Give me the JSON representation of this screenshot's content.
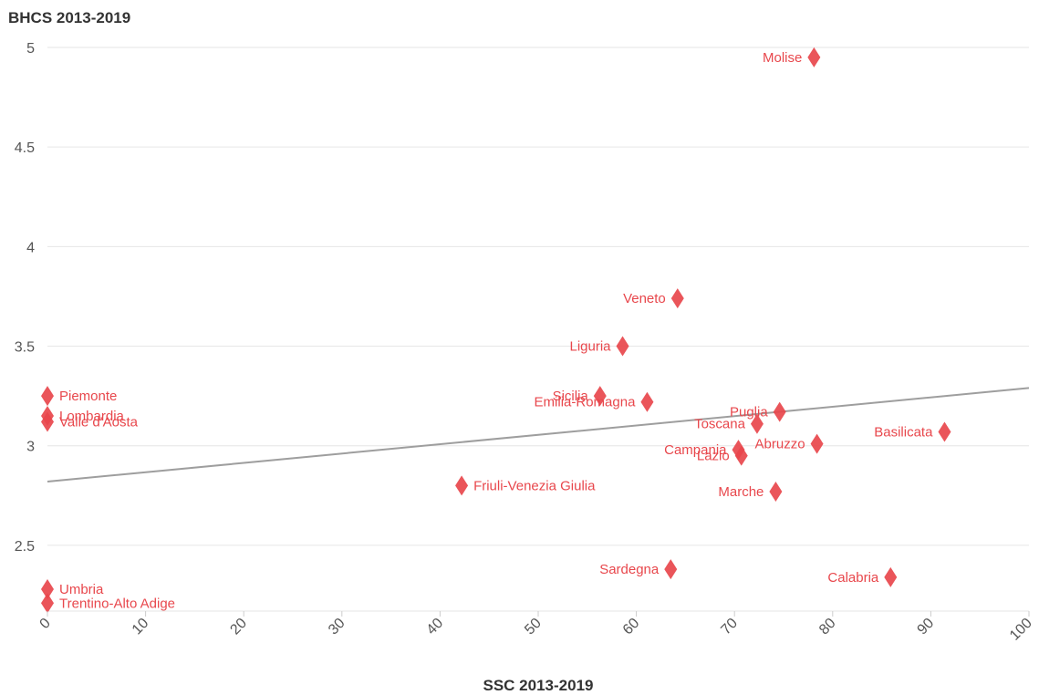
{
  "chart_data": {
    "type": "scatter",
    "ylabel": "BHCS 2013-2019",
    "xlabel": "SSC 2013-2019",
    "xlim": [
      0,
      100
    ],
    "ylim": [
      2.17,
      5.0
    ],
    "xticks": [
      0,
      10,
      20,
      30,
      40,
      50,
      60,
      70,
      80,
      90,
      100
    ],
    "xtick_labels": [
      "0",
      "10",
      "20",
      "30",
      "40",
      "50",
      "60",
      "70",
      "80",
      "90",
      "100"
    ],
    "yticks": [
      2.5,
      3,
      3.5,
      4,
      4.5,
      5
    ],
    "ytick_labels": [
      "2.5",
      "3",
      "3.5",
      "4",
      "4.5",
      "5"
    ],
    "grid": "horizontal",
    "marker_color": "#e8474c",
    "trendline_color": "#9e9e9e",
    "trendline": {
      "x": [
        0,
        100
      ],
      "y": [
        2.82,
        3.29
      ]
    },
    "points": [
      {
        "name": "Molise",
        "x": 78.1,
        "y": 4.95,
        "label_side": "left"
      },
      {
        "name": "Veneto",
        "x": 64.2,
        "y": 3.74,
        "label_side": "left"
      },
      {
        "name": "Liguria",
        "x": 58.6,
        "y": 3.5,
        "label_side": "left"
      },
      {
        "name": "Emilia-Romagna",
        "x": 61.1,
        "y": 3.22,
        "label_side": "left"
      },
      {
        "name": "Sicilia",
        "x": 56.3,
        "y": 3.25,
        "label_side": "left"
      },
      {
        "name": "Piemonte",
        "x": 0,
        "y": 3.25,
        "label_side": "right"
      },
      {
        "name": "Lombardia",
        "x": 0,
        "y": 3.15,
        "label_side": "right"
      },
      {
        "name": "Valle d'Aosta",
        "x": 0,
        "y": 3.12,
        "label_side": "right"
      },
      {
        "name": "Puglia",
        "x": 74.6,
        "y": 3.17,
        "label_side": "left"
      },
      {
        "name": "Toscana",
        "x": 72.3,
        "y": 3.11,
        "label_side": "left"
      },
      {
        "name": "Basilicata",
        "x": 91.4,
        "y": 3.07,
        "label_side": "left"
      },
      {
        "name": "Abruzzo",
        "x": 78.4,
        "y": 3.01,
        "label_side": "left"
      },
      {
        "name": "Campania",
        "x": 70.4,
        "y": 2.98,
        "label_side": "left"
      },
      {
        "name": "Lazio",
        "x": 70.7,
        "y": 2.95,
        "label_side": "left"
      },
      {
        "name": "Friuli-Venezia Giulia",
        "x": 42.2,
        "y": 2.8,
        "label_side": "right"
      },
      {
        "name": "Marche",
        "x": 74.2,
        "y": 2.77,
        "label_side": "left"
      },
      {
        "name": "Sardegna",
        "x": 63.5,
        "y": 2.38,
        "label_side": "left"
      },
      {
        "name": "Calabria",
        "x": 85.9,
        "y": 2.34,
        "label_side": "left"
      },
      {
        "name": "Umbria",
        "x": 0,
        "y": 2.28,
        "label_side": "right"
      },
      {
        "name": "Trentino-Alto Adige",
        "x": 0,
        "y": 2.21,
        "label_side": "right"
      }
    ]
  }
}
